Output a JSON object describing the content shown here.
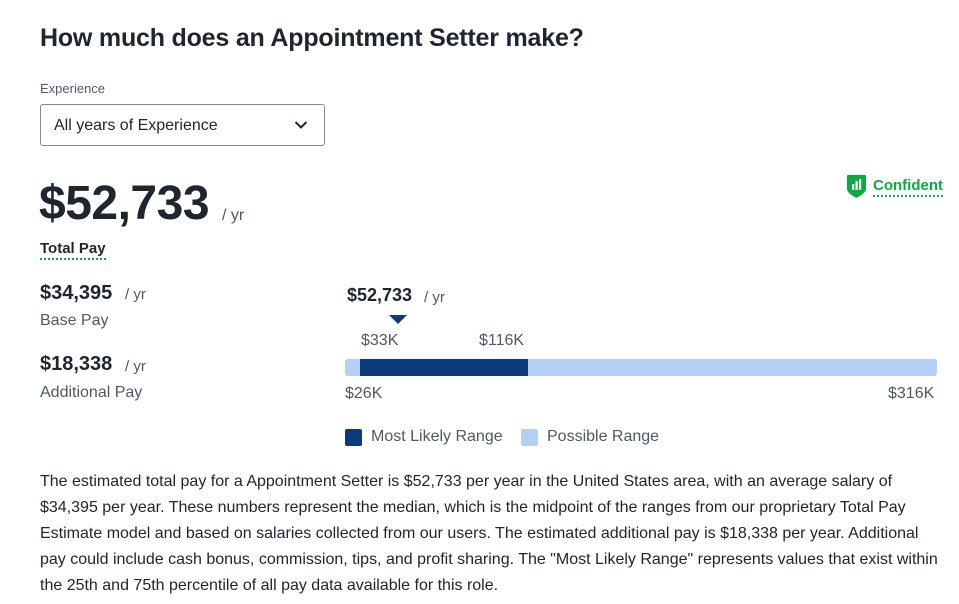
{
  "header": {
    "title": "How much does an Appointment Setter make?"
  },
  "experience": {
    "label": "Experience",
    "selected": "All years of Experience"
  },
  "total_pay": {
    "amount": "$52,733",
    "unit": "/ yr",
    "label": "Total Pay"
  },
  "confidence": {
    "label": "Confident",
    "color": "#0caa41"
  },
  "base_pay": {
    "amount": "$34,395",
    "unit": "/ yr",
    "label": "Base Pay"
  },
  "additional_pay": {
    "amount": "$18,338",
    "unit": "/ yr",
    "label": "Additional Pay"
  },
  "range_chart": {
    "median_label": "$52,733",
    "median_unit": "/ yr",
    "likely_low_label": "$33K",
    "likely_high_label": "$116K",
    "possible_low_label": "$26K",
    "possible_high_label": "$316K",
    "colors": {
      "likely": "#0d3a7d",
      "possible": "#b5d0f7"
    }
  },
  "legend": {
    "likely": "Most Likely Range",
    "possible": "Possible Range"
  },
  "description": "The estimated total pay for a Appointment Setter is $52,733 per year in the United States area, with an average salary of $34,395 per year. These numbers represent the median, which is the midpoint of the ranges from our proprietary Total Pay Estimate model and based on salaries collected from our users. The estimated additional pay is $18,338 per year. Additional pay could include cash bonus, commission, tips, and profit sharing. The \"Most Likely Range\" represents values that exist within the 25th and 75th percentile of all pay data available for this role."
}
